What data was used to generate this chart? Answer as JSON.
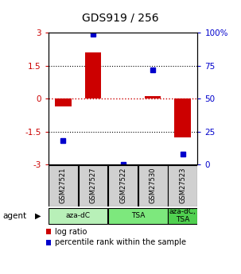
{
  "title": "GDS919 / 256",
  "samples": [
    "GSM27521",
    "GSM27527",
    "GSM27522",
    "GSM27530",
    "GSM27523"
  ],
  "log_ratios": [
    -0.35,
    2.1,
    0.0,
    0.13,
    -1.75
  ],
  "percentile_ranks": [
    18,
    99,
    0,
    72,
    8
  ],
  "agents": [
    {
      "label": "aza-dC",
      "start": 0,
      "end": 2,
      "color": "#b8f0b8"
    },
    {
      "label": "TSA",
      "start": 2,
      "end": 4,
      "color": "#7de87d"
    },
    {
      "label": "aza-dC,\nTSA",
      "start": 4,
      "end": 5,
      "color": "#50d050"
    }
  ],
  "ylim": [
    -3,
    3
  ],
  "yticks_left": [
    -3,
    -1.5,
    0,
    1.5,
    3
  ],
  "yticks_right_vals": [
    0,
    25,
    50,
    75,
    100
  ],
  "bar_color": "#cc0000",
  "dot_color": "#0000cc",
  "bar_width": 0.55,
  "hline_color": "#cc0000",
  "grid_lines": [
    -1.5,
    1.5
  ],
  "grid_color": "#000000",
  "label_log_ratio": "log ratio",
  "label_percentile": "percentile rank within the sample",
  "agent_label": "agent",
  "sample_box_color": "#d0d0d0"
}
